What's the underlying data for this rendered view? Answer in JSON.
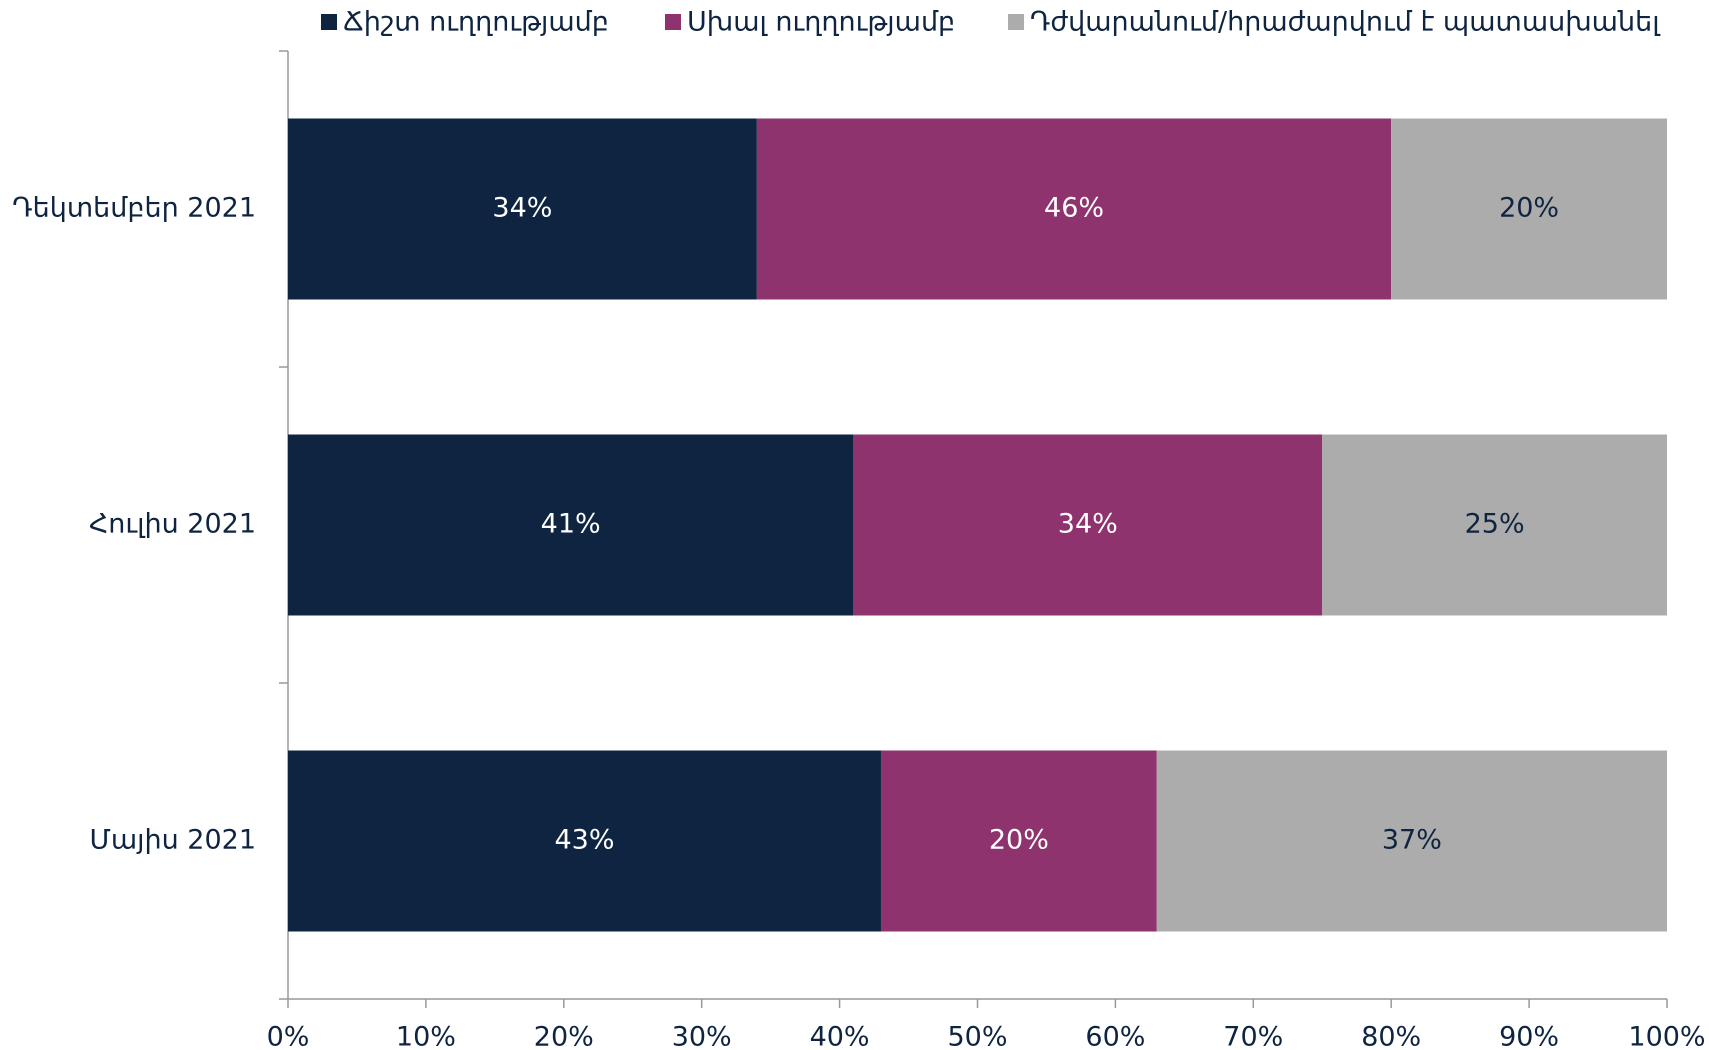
{
  "chart_data": {
    "type": "bar",
    "orientation": "horizontal",
    "stacked": true,
    "categories": [
      "Դեկտեմբեր 2021",
      "Հուլիս 2021",
      "Մայիս 2021"
    ],
    "series": [
      {
        "name": "Ճիշտ ուղղությամբ",
        "color": "#0f2440",
        "values": [
          34,
          41,
          43
        ],
        "value_labels": [
          "34%",
          "41%",
          "43%"
        ]
      },
      {
        "name": "Սխալ ուղղությամբ",
        "color": "#8e336d",
        "values": [
          46,
          34,
          20
        ],
        "value_labels": [
          "46%",
          "34%",
          "20%"
        ]
      },
      {
        "name": "Դժվարանում/հրաժարվում է պատասխանել",
        "color": "#acacac",
        "values": [
          20,
          25,
          37
        ],
        "value_labels": [
          "20%",
          "25%",
          "37%"
        ]
      }
    ],
    "xlim": [
      0,
      100
    ],
    "xticks": [
      {
        "value": 0,
        "label": "0%"
      },
      {
        "value": 10,
        "label": "10%"
      },
      {
        "value": 20,
        "label": "20%"
      },
      {
        "value": 30,
        "label": "30%"
      },
      {
        "value": 40,
        "label": "40%"
      },
      {
        "value": 50,
        "label": "50%"
      },
      {
        "value": 60,
        "label": "60%"
      },
      {
        "value": 70,
        "label": "70%"
      },
      {
        "value": 80,
        "label": "80%"
      },
      {
        "value": 90,
        "label": "90%"
      },
      {
        "value": 100,
        "label": "100%"
      }
    ],
    "legend": "top"
  }
}
